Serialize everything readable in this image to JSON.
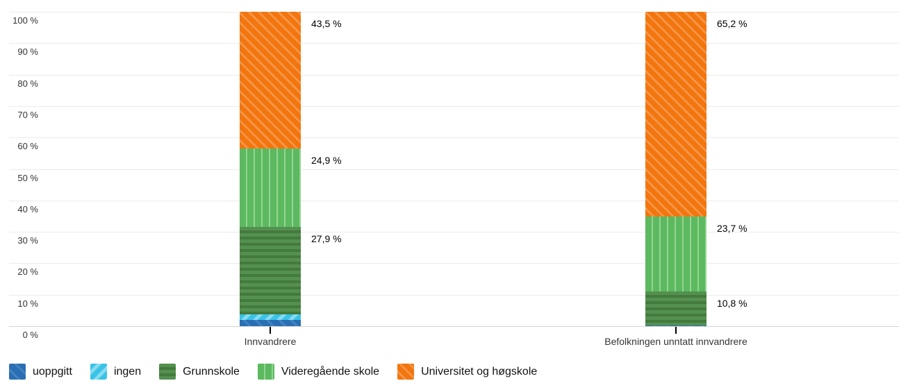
{
  "chart_data": {
    "type": "bar",
    "stacked": true,
    "orientation": "vertical",
    "categories": [
      "Innvandrere",
      "Befolkningen unntatt innvandrere"
    ],
    "series": [
      {
        "name": "uoppgitt",
        "values": [
          2.0,
          0.2
        ],
        "labels": [
          null,
          null
        ],
        "color": "#2a6fb4",
        "stripe_color": "#4583c1",
        "pattern": "diag-up",
        "stripe_widths": [
          9,
          3
        ]
      },
      {
        "name": "ingen",
        "values": [
          1.7,
          0.1
        ],
        "labels": [
          null,
          null
        ],
        "color": "#3ac3e6",
        "stripe_color": "#86dcf0",
        "pattern": "diag-down",
        "stripe_widths": [
          7,
          5
        ]
      },
      {
        "name": "Grunnskole",
        "values": [
          27.9,
          10.8
        ],
        "labels": [
          "27,9 %",
          "10,8 %"
        ],
        "color": "#549050",
        "stripe_color": "#447a3c",
        "pattern": "horizontal",
        "stripe_widths": [
          5,
          4
        ]
      },
      {
        "name": "Videregående skole",
        "values": [
          24.9,
          23.7
        ],
        "labels": [
          "24,9 %",
          "23,7 %"
        ],
        "color": "#5cb95f",
        "stripe_color": "#92d593",
        "pattern": "vertical",
        "stripe_widths": [
          9,
          2
        ]
      },
      {
        "name": "Universitet og høgskole",
        "values": [
          43.5,
          65.2
        ],
        "labels": [
          "43,5 %",
          "65,2 %"
        ],
        "color": "#f2750e",
        "stripe_color": "#f59445",
        "pattern": "diag-up",
        "stripe_widths": [
          7,
          3
        ]
      }
    ],
    "y_axis": {
      "ticks": [
        "0 %",
        "10 %",
        "20 %",
        "30 %",
        "40 %",
        "50 %",
        "60 %",
        "70 %",
        "80 %",
        "90 %",
        "100 %"
      ],
      "min": 0,
      "max": 100,
      "grid": true
    },
    "value_suffix": " %",
    "decimal_separator": ",",
    "legend_position": "bottom-left",
    "colors": {
      "grid": "#edebe8",
      "axis_line": "#d7d4d1",
      "tick_mark": "#000000",
      "axis_text": "#333333",
      "data_label_text": "#000000",
      "legend_text": "#111111",
      "background": "#ffffff"
    }
  }
}
